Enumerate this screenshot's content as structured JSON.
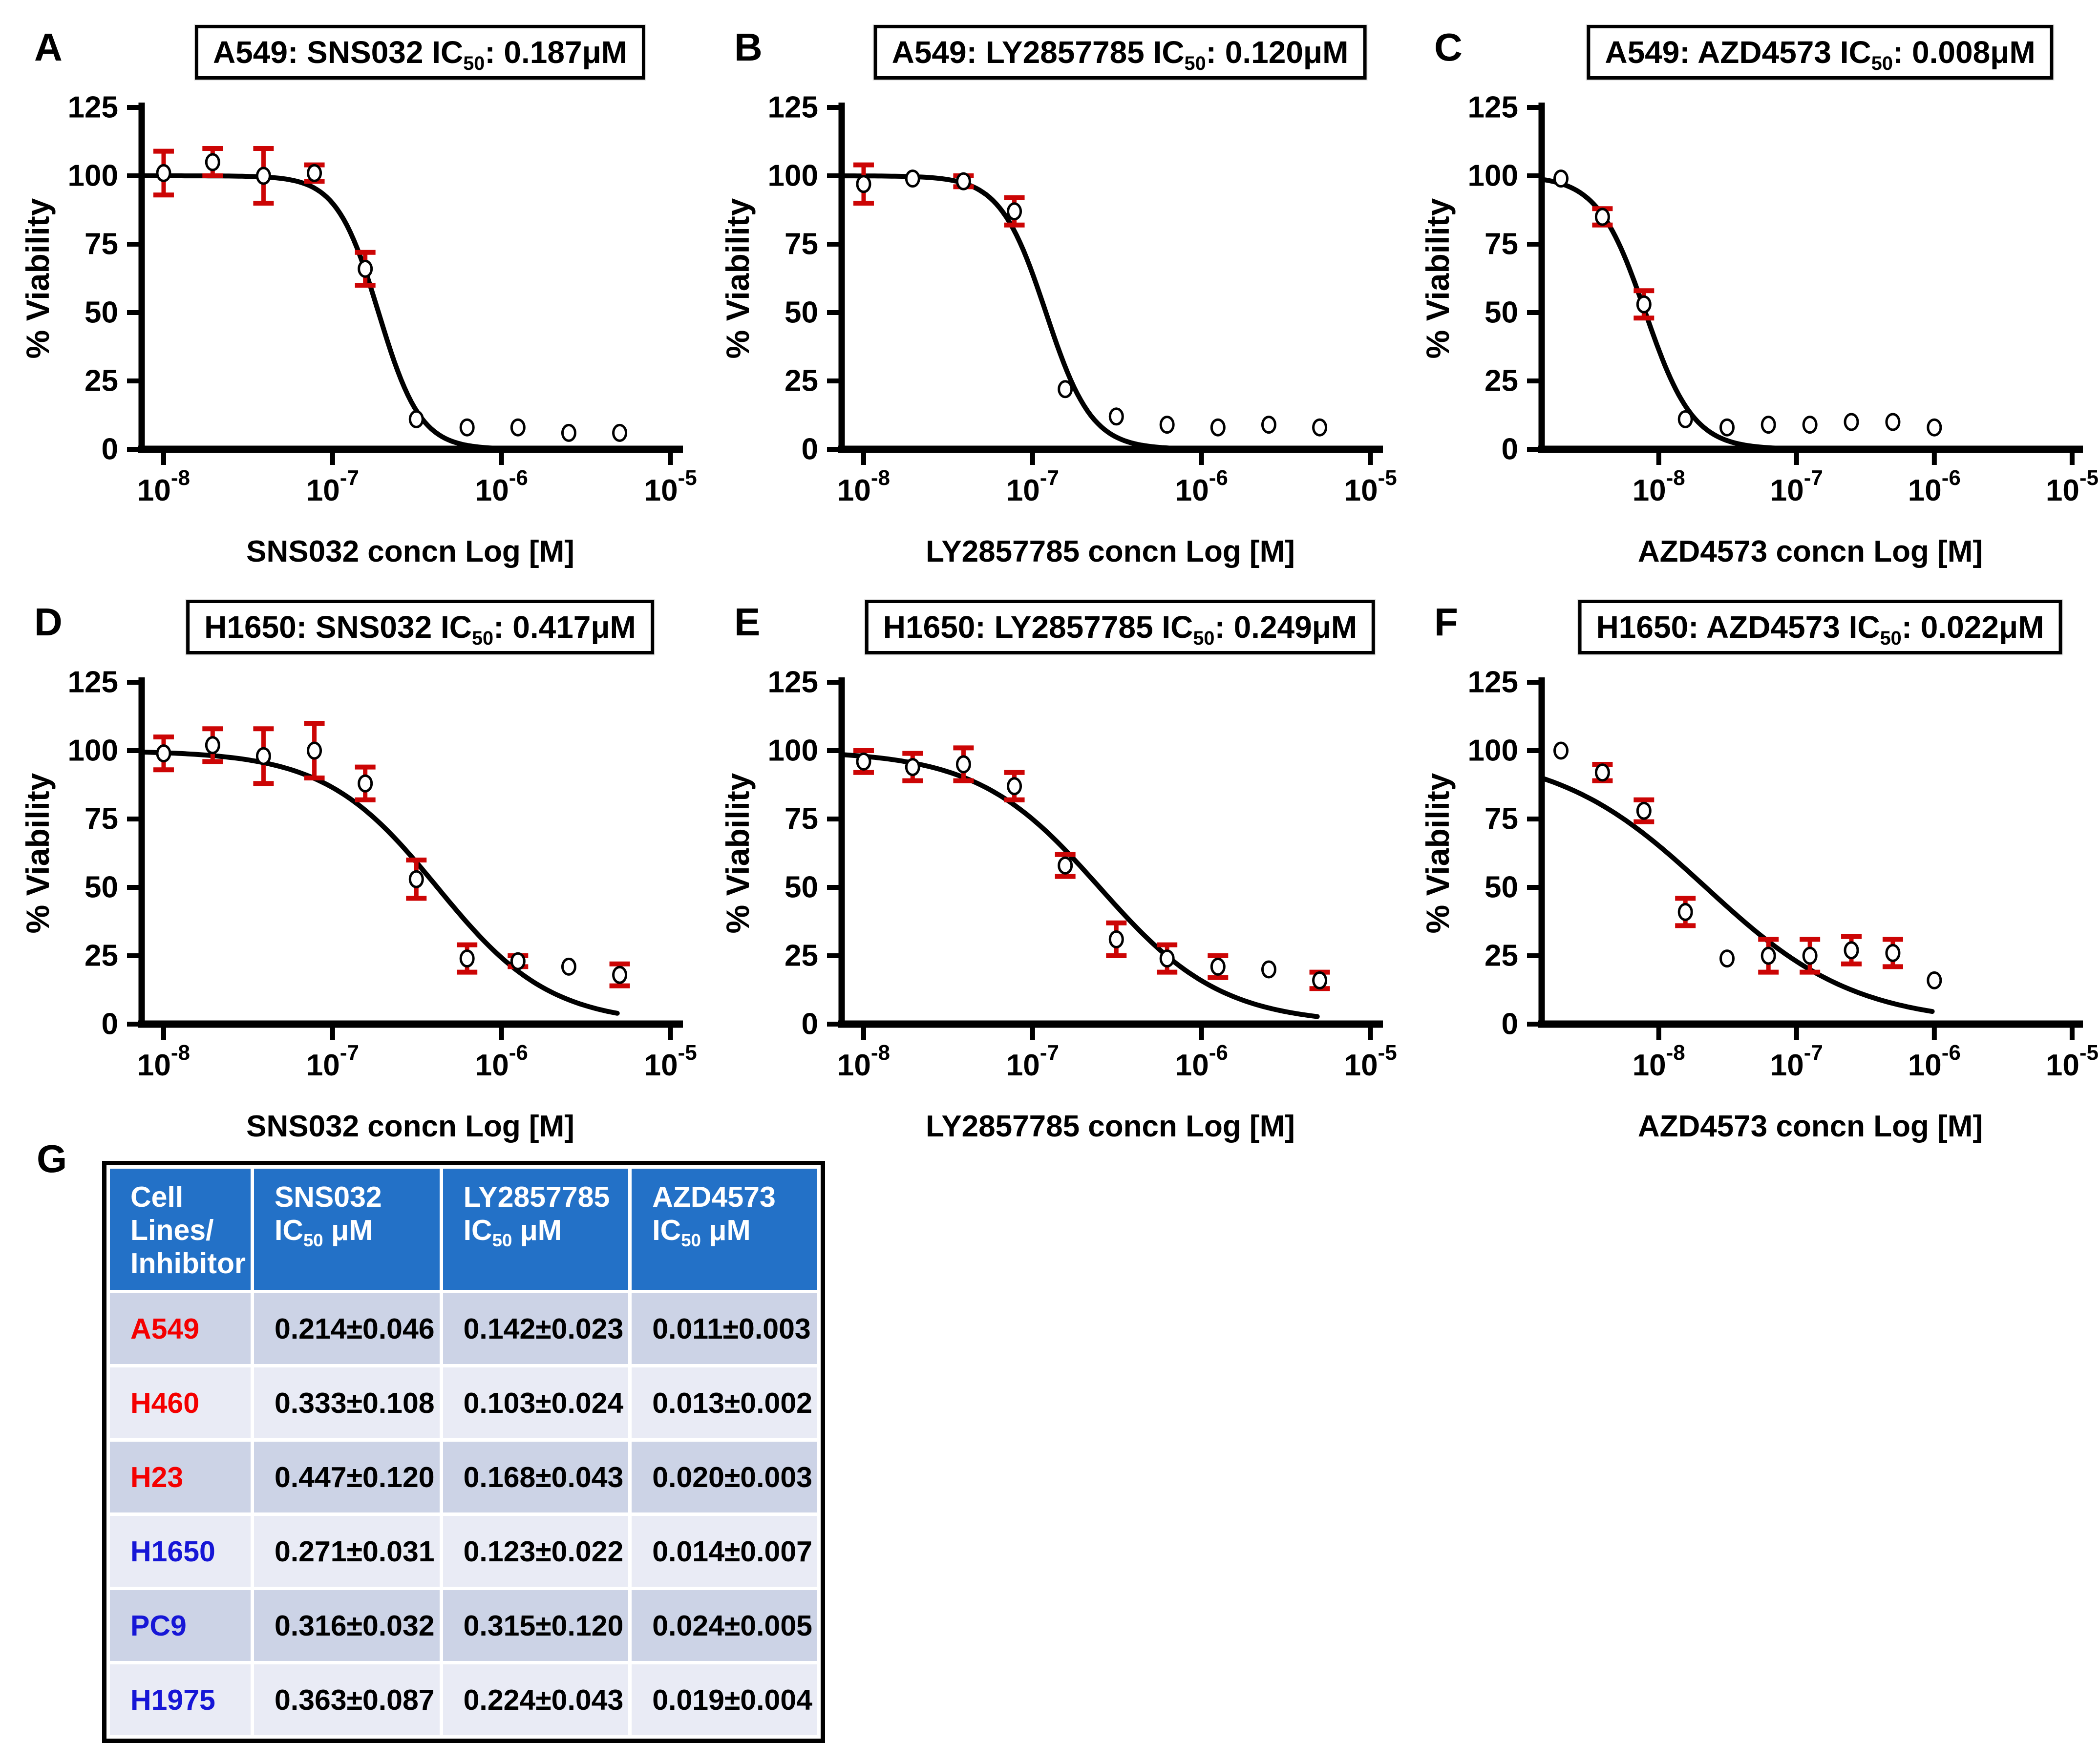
{
  "colors": {
    "axis": "#000000",
    "curve": "#000000",
    "marker_fill": "#ffffff",
    "marker_stroke": "#000000",
    "error_bar": "#cc0505",
    "table_header_bg": "#2371c7",
    "table_header_text": "#ffffff",
    "row_dark": "#ccd3e6",
    "row_light": "#e9ebf5",
    "cell_line_red": "#f40000",
    "cell_line_blue": "#1616d6"
  },
  "chart_data": [
    {
      "type": "scatter",
      "letter": "A",
      "title": "A549: SNS032 IC50: 0.187μM",
      "xlabel": "SNS032 concn Log [M]",
      "ylabel": "% Viability",
      "x_domain_log": [
        -8.13,
        -4.95
      ],
      "x_tick_exponents": [
        -8,
        -7,
        -6,
        -5
      ],
      "y_ticks": [
        0,
        25,
        50,
        75,
        100,
        125
      ],
      "ylim": [
        0,
        125
      ],
      "x": [
        1e-08,
        1.95e-08,
        3.9e-08,
        7.8e-08,
        1.56e-07,
        3.13e-07,
        6.25e-07,
        1.25e-06,
        2.5e-06,
        5e-06
      ],
      "y": [
        101,
        105,
        100,
        101,
        66,
        11,
        8,
        8,
        6,
        6
      ],
      "yerr": [
        8,
        5,
        10,
        3,
        6,
        0,
        0,
        0,
        0,
        0
      ],
      "fit": {
        "top": 100,
        "bottom": 0,
        "logIC50": -6.728,
        "hill": 3.5
      }
    },
    {
      "type": "scatter",
      "letter": "B",
      "title": "A549: LY2857785 IC50: 0.120μM",
      "xlabel": "LY2857785 concn Log [M]",
      "ylabel": "% Viability",
      "x_domain_log": [
        -8.13,
        -4.95
      ],
      "x_tick_exponents": [
        -8,
        -7,
        -6,
        -5
      ],
      "y_ticks": [
        0,
        25,
        50,
        75,
        100,
        125
      ],
      "ylim": [
        0,
        125
      ],
      "x": [
        1e-08,
        1.95e-08,
        3.9e-08,
        7.8e-08,
        1.56e-07,
        3.13e-07,
        6.25e-07,
        1.25e-06,
        2.5e-06,
        5e-06
      ],
      "y": [
        97,
        99,
        98,
        87,
        22,
        12,
        9,
        8,
        9,
        8
      ],
      "yerr": [
        7,
        0,
        2,
        5,
        0,
        0,
        0,
        0,
        0,
        0
      ],
      "fit": {
        "top": 100,
        "bottom": 0,
        "logIC50": -6.921,
        "hill": 3.2
      }
    },
    {
      "type": "scatter",
      "letter": "C",
      "title": "A549: AZD4573 IC50: 0.008μM",
      "xlabel": "AZD4573 concn Log [M]",
      "ylabel": "% Viability",
      "x_domain_log": [
        -8.85,
        -4.95
      ],
      "x_tick_exponents": [
        -8,
        -7,
        -6,
        -5
      ],
      "y_ticks": [
        0,
        25,
        50,
        75,
        100,
        125
      ],
      "ylim": [
        0,
        125
      ],
      "x": [
        1.95e-09,
        3.9e-09,
        7.8e-09,
        1.56e-08,
        3.13e-08,
        6.25e-08,
        1.25e-07,
        2.5e-07,
        5e-07,
        1e-06
      ],
      "y": [
        99,
        85,
        53,
        11,
        8,
        9,
        9,
        10,
        10,
        8
      ],
      "yerr": [
        0,
        3,
        5,
        0,
        0,
        0,
        0,
        0,
        0,
        0
      ],
      "fit": {
        "top": 100,
        "bottom": 0,
        "logIC50": -8.097,
        "hill": 2.5
      }
    },
    {
      "type": "scatter",
      "letter": "D",
      "title": "H1650: SNS032 IC50: 0.417μM",
      "xlabel": "SNS032 concn Log [M]",
      "ylabel": "% Viability",
      "x_domain_log": [
        -8.13,
        -4.95
      ],
      "x_tick_exponents": [
        -8,
        -7,
        -6,
        -5
      ],
      "y_ticks": [
        0,
        25,
        50,
        75,
        100,
        125
      ],
      "ylim": [
        0,
        125
      ],
      "x": [
        1e-08,
        1.95e-08,
        3.9e-08,
        7.8e-08,
        1.56e-07,
        3.13e-07,
        6.25e-07,
        1.25e-06,
        2.5e-06,
        5e-06
      ],
      "y": [
        99,
        102,
        98,
        100,
        88,
        53,
        24,
        23,
        21,
        18
      ],
      "yerr": [
        6,
        6,
        10,
        10,
        6,
        7,
        5,
        2,
        0,
        4
      ],
      "fit": {
        "top": 100,
        "bottom": 0,
        "logIC50": -6.38,
        "hill": 1.3
      }
    },
    {
      "type": "scatter",
      "letter": "E",
      "title": "H1650: LY2857785 IC50: 0.249μM",
      "xlabel": "LY2857785 concn Log [M]",
      "ylabel": "% Viability",
      "x_domain_log": [
        -8.13,
        -4.95
      ],
      "x_tick_exponents": [
        -8,
        -7,
        -6,
        -5
      ],
      "y_ticks": [
        0,
        25,
        50,
        75,
        100,
        125
      ],
      "ylim": [
        0,
        125
      ],
      "x": [
        1e-08,
        1.95e-08,
        3.9e-08,
        7.8e-08,
        1.56e-07,
        3.13e-07,
        6.25e-07,
        1.25e-06,
        2.5e-06,
        5e-06
      ],
      "y": [
        96,
        94,
        95,
        87,
        58,
        31,
        24,
        21,
        20,
        16
      ],
      "yerr": [
        4,
        5,
        6,
        5,
        4,
        6,
        5,
        4,
        0,
        3
      ],
      "fit": {
        "top": 100,
        "bottom": 0,
        "logIC50": -6.604,
        "hill": 1.2
      }
    },
    {
      "type": "scatter",
      "letter": "F",
      "title": "H1650: AZD4573 IC50: 0.022μM",
      "xlabel": "AZD4573 concn Log [M]",
      "ylabel": "% Viability",
      "x_domain_log": [
        -8.85,
        -4.95
      ],
      "x_tick_exponents": [
        -8,
        -7,
        -6,
        -5
      ],
      "y_ticks": [
        0,
        25,
        50,
        75,
        100,
        125
      ],
      "ylim": [
        0,
        125
      ],
      "x": [
        1.95e-09,
        3.9e-09,
        7.8e-09,
        1.56e-08,
        3.13e-08,
        6.25e-08,
        1.25e-07,
        2.5e-07,
        5e-07,
        1e-06
      ],
      "y": [
        100,
        92,
        78,
        41,
        24,
        25,
        25,
        27,
        26,
        16
      ],
      "yerr": [
        0,
        3,
        4,
        5,
        0,
        6,
        6,
        5,
        5,
        0
      ],
      "fit": {
        "top": 100,
        "bottom": 0,
        "logIC50": -7.658,
        "hill": 0.8
      }
    },
    {
      "type": "table",
      "letter": "G",
      "headers": [
        "Cell Lines/ Inhibitor",
        "SNS032 IC50 μM",
        "LY2857785 IC50 μM",
        "AZD4573 IC50 μM"
      ],
      "rows": [
        {
          "cell_line": "A549",
          "color": "red",
          "values": [
            "0.214±0.046",
            "0.142±0.023",
            "0.011±0.003"
          ]
        },
        {
          "cell_line": "H460",
          "color": "red",
          "values": [
            "0.333±0.108",
            "0.103±0.024",
            "0.013±0.002"
          ]
        },
        {
          "cell_line": "H23",
          "color": "red",
          "values": [
            "0.447±0.120",
            "0.168±0.043",
            "0.020±0.003"
          ]
        },
        {
          "cell_line": "H1650",
          "color": "blue",
          "values": [
            "0.271±0.031",
            "0.123±0.022",
            "0.014±0.007"
          ]
        },
        {
          "cell_line": "PC9",
          "color": "blue",
          "values": [
            "0.316±0.032",
            "0.315±0.120",
            "0.024±0.005"
          ]
        },
        {
          "cell_line": "H1975",
          "color": "blue",
          "values": [
            "0.363±0.087",
            "0.224±0.043",
            "0.019±0.004"
          ]
        }
      ]
    }
  ]
}
